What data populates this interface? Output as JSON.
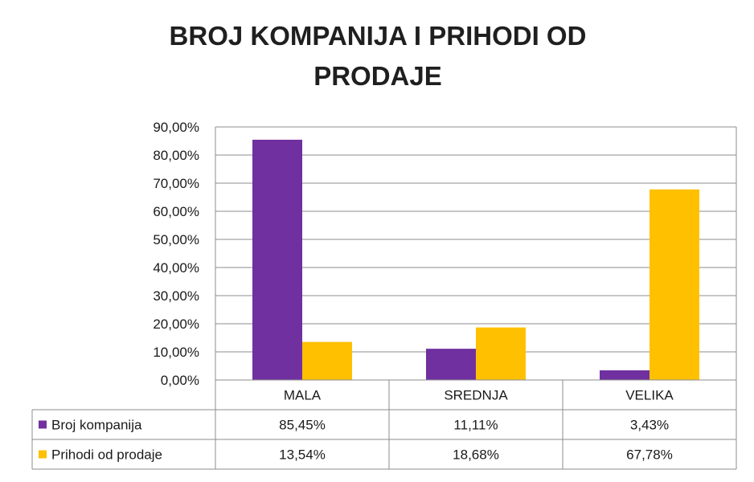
{
  "chart_data": {
    "type": "bar",
    "title": "BROJ KOMPANIJA I PRIHODI OD PRODAJE",
    "categories": [
      "MALA",
      "SREDNJA",
      "VELIKA"
    ],
    "series": [
      {
        "name": "Broj kompanija",
        "values": [
          85.45,
          11.11,
          3.43
        ],
        "labels": [
          "85,45%",
          "11,11%",
          "3,43%"
        ],
        "color": "#7030a0"
      },
      {
        "name": "Prihodi od prodaje",
        "values": [
          13.54,
          18.68,
          67.78
        ],
        "labels": [
          "13,54%",
          "18,68%",
          "67,78%"
        ],
        "color": "#ffc000"
      }
    ],
    "ylim": [
      0,
      90
    ],
    "yticks": [
      "0,00%",
      "10,00%",
      "20,00%",
      "30,00%",
      "40,00%",
      "50,00%",
      "60,00%",
      "70,00%",
      "80,00%",
      "90,00%"
    ],
    "grid": true,
    "legend": "data-table",
    "data_table": true
  }
}
